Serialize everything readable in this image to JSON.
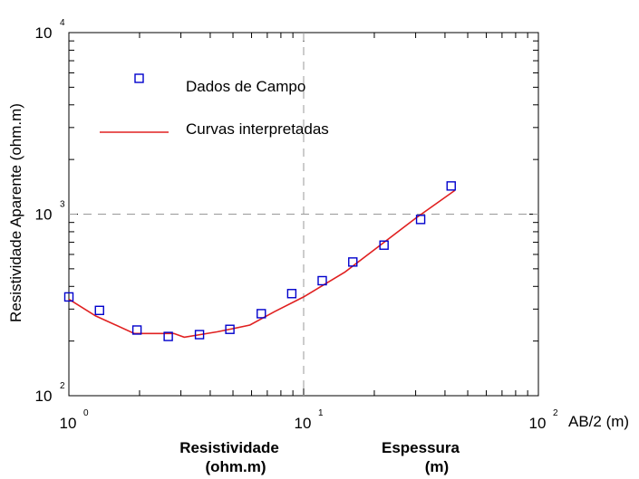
{
  "chart_data": {
    "type": "scatter",
    "x_scale": "log",
    "y_scale": "log",
    "xlim": [
      1,
      100
    ],
    "ylim": [
      100,
      10000
    ],
    "x_ticks": [
      {
        "base": "10",
        "exp": "0",
        "value": 1
      },
      {
        "base": "10",
        "exp": "1",
        "value": 10
      },
      {
        "base": "10",
        "exp": "2",
        "value": 100
      }
    ],
    "y_ticks": [
      {
        "base": "10",
        "exp": "2",
        "value": 100
      },
      {
        "base": "10",
        "exp": "3",
        "value": 1000
      },
      {
        "base": "10",
        "exp": "4",
        "value": 10000
      }
    ],
    "xlabel": "AB/2 (m)",
    "ylabel": "Resistividade Aparente (ohm.m)",
    "legend_position": "top-left",
    "legend": {
      "points_label": "Dados de Campo",
      "line_label": "Curvas interpretadas"
    },
    "reference_lines": {
      "x": 10,
      "y": 1000
    },
    "series": [
      {
        "name": "Dados de Campo",
        "kind": "markers",
        "color": "#0000cc",
        "x": [
          1.0,
          1.35,
          1.95,
          2.65,
          3.6,
          4.85,
          6.6,
          8.9,
          12.0,
          16.2,
          22.0,
          31.5,
          42.5
        ],
        "y": [
          350,
          295,
          230,
          212,
          217,
          232,
          283,
          365,
          430,
          545,
          675,
          935,
          1430
        ]
      },
      {
        "name": "Curvas interpretadas",
        "kind": "line",
        "color": "#e02020",
        "x": [
          1.0,
          1.3,
          1.9,
          2.8,
          3.1,
          4.3,
          5.9,
          7.5,
          10.0,
          15.0,
          22.0,
          30.0,
          44.0
        ],
        "y": [
          340,
          275,
          220,
          220,
          210,
          225,
          245,
          290,
          350,
          480,
          700,
          950,
          1350
        ]
      }
    ],
    "annotations": [
      {
        "line1": "Resistividade",
        "line2": "(ohm.m)"
      },
      {
        "line1": "Espessura",
        "line2": "(m)"
      }
    ]
  }
}
